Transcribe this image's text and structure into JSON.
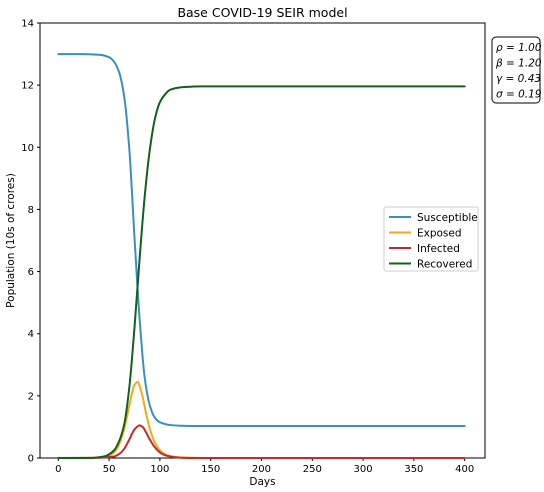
{
  "chart_data": {
    "type": "line",
    "title": "Base COVID-19 SEIR model",
    "xlabel": "Days",
    "ylabel": "Population (10s of crores)",
    "xlim": [
      -18,
      420
    ],
    "ylim": [
      0,
      14
    ],
    "xticks": [
      0,
      50,
      100,
      150,
      200,
      250,
      300,
      350,
      400
    ],
    "yticks": [
      0,
      2,
      4,
      6,
      8,
      10,
      12,
      14
    ],
    "grid": false,
    "legend_position": "center-right",
    "parameters_box": {
      "position": "top-right-outside",
      "lines": [
        "ρ = 1.00",
        "β = 1.20",
        "γ = 0.43",
        "σ = 0.19"
      ]
    },
    "series": [
      {
        "name": "Susceptible",
        "color": "#3a8fc0",
        "x": [
          0,
          20,
          40,
          50,
          55,
          60,
          65,
          70,
          75,
          80,
          85,
          90,
          95,
          100,
          110,
          120,
          140,
          170,
          200,
          250,
          300,
          350,
          400
        ],
        "y": [
          13.0,
          13.0,
          12.98,
          12.9,
          12.75,
          12.4,
          11.6,
          9.9,
          7.1,
          4.5,
          2.6,
          1.7,
          1.3,
          1.15,
          1.06,
          1.04,
          1.03,
          1.03,
          1.03,
          1.03,
          1.03,
          1.03,
          1.03
        ]
      },
      {
        "name": "Exposed",
        "color": "#f5a81c",
        "x": [
          0,
          30,
          45,
          55,
          60,
          65,
          70,
          75,
          78,
          82,
          86,
          90,
          95,
          100,
          105,
          110,
          120,
          130,
          150,
          200,
          250,
          300,
          350,
          400
        ],
        "y": [
          0.0,
          0.0,
          0.03,
          0.18,
          0.45,
          0.95,
          1.7,
          2.35,
          2.45,
          2.1,
          1.5,
          0.95,
          0.5,
          0.25,
          0.12,
          0.06,
          0.02,
          0.01,
          0.0,
          0.0,
          0.0,
          0.0,
          0.0,
          0.0
        ]
      },
      {
        "name": "Infected",
        "color": "#c42a2a",
        "x": [
          0,
          40,
          55,
          60,
          65,
          70,
          75,
          80,
          83,
          86,
          90,
          95,
          100,
          105,
          110,
          120,
          140,
          200,
          250,
          300,
          350,
          400
        ],
        "y": [
          0.0,
          0.01,
          0.05,
          0.13,
          0.3,
          0.6,
          0.92,
          1.05,
          1.0,
          0.85,
          0.6,
          0.35,
          0.18,
          0.09,
          0.05,
          0.01,
          0.0,
          0.0,
          0.0,
          0.0,
          0.0,
          0.0
        ]
      },
      {
        "name": "Recovered",
        "color": "#10611a",
        "x": [
          0,
          30,
          45,
          55,
          60,
          65,
          70,
          75,
          80,
          85,
          90,
          95,
          100,
          105,
          110,
          120,
          130,
          140,
          150,
          200,
          250,
          300,
          350,
          400
        ],
        "y": [
          0.0,
          0.0,
          0.05,
          0.25,
          0.55,
          1.1,
          2.3,
          4.2,
          6.4,
          8.4,
          9.9,
          10.9,
          11.45,
          11.7,
          11.85,
          11.93,
          11.95,
          11.96,
          11.96,
          11.96,
          11.96,
          11.96,
          11.96,
          11.96
        ]
      }
    ]
  }
}
